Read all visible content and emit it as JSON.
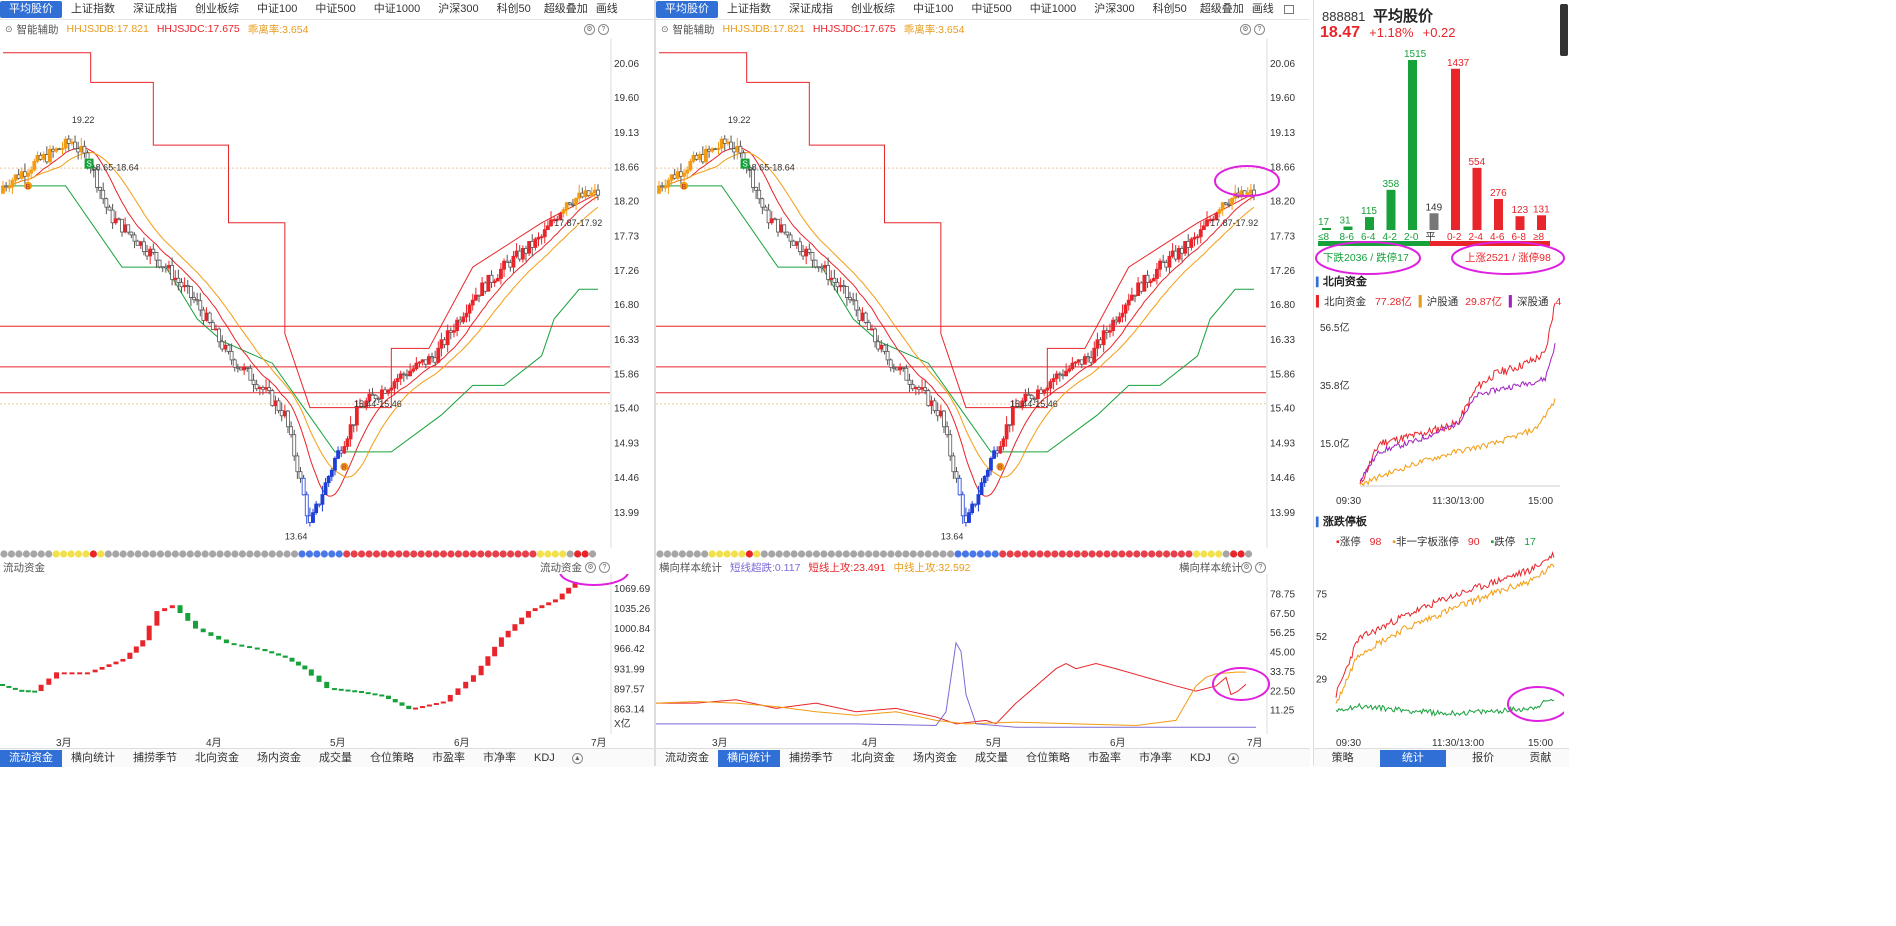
{
  "tabs": [
    "平均股价",
    "上证指数",
    "深证成指",
    "创业板综",
    "中证100",
    "中证500",
    "中证1000",
    "沪深300",
    "科创50",
    "超级叠加",
    "画线"
  ],
  "active_tab": "平均股价",
  "indicator_bar": {
    "label": "智能辅助",
    "v1": "HHJSJDB:17.821",
    "v2": "HHJSJDC:17.675",
    "v3": "乖离率:3.654"
  },
  "price_axis": [
    "20.06",
    "19.60",
    "19.13",
    "18.66",
    "18.20",
    "17.73",
    "17.26",
    "16.80",
    "16.33",
    "15.86",
    "15.40",
    "14.93",
    "14.46",
    "13.99"
  ],
  "annotations": {
    "high": "19.22",
    "zone1": "18.65-18.64",
    "zone2": "15.44-15.46",
    "zone3": "17.87-17.92",
    "low": "13.64",
    "buy": "B"
  },
  "x_axis": [
    "3月",
    "4月",
    "5月",
    "6月",
    "7月"
  ],
  "left_sub": {
    "title": "流动资金",
    "right_title": "流动资金",
    "axis": [
      "1069.69",
      "1035.26",
      "1000.84",
      "966.42",
      "931.99",
      "897.57",
      "863.14"
    ],
    "unit": "X亿"
  },
  "right_sub": {
    "title": "横向样本统计",
    "v1": "短线超跌:0.117",
    "v2": "短线上攻:23.491",
    "v3": "中线上攻:32.592",
    "right_title": "横向样本统计",
    "axis": [
      "78.75",
      "67.50",
      "56.25",
      "45.00",
      "33.75",
      "22.50",
      "11.25"
    ]
  },
  "bottom_tabs": [
    "流动资金",
    "横向统计",
    "捕捞季节",
    "北向资金",
    "场内资金",
    "成交量",
    "仓位策略",
    "市盈率",
    "市净率",
    "KDJ"
  ],
  "left_bottom_active": "流动资金",
  "right_bottom_active": "横向统计",
  "side": {
    "code": "888881",
    "name": "平均股价",
    "price": "18.47",
    "pct": "+1.18%",
    "chg": "+0.22",
    "dist": {
      "labels": [
        "≤8",
        "8-6",
        "6-4",
        "4-2",
        "2-0",
        "平",
        "0-2",
        "2-4",
        "4-6",
        "6-8",
        "≥8"
      ],
      "values": [
        17,
        31,
        115,
        358,
        1515,
        149,
        1437,
        554,
        276,
        123,
        131
      ],
      "value_labels": [
        "17",
        "31",
        "115",
        "358",
        "1515",
        "149",
        "1437",
        "554",
        "276",
        "123",
        "131"
      ]
    },
    "down_text": "下跌2036 / 跌停17",
    "up_text": "上涨2521 / 涨停98",
    "north": {
      "title": "北向资金",
      "l1": "北向资金",
      "v1": "77.28亿",
      "l2": "沪股通",
      "v2": "29.87亿",
      "l3": "深股通",
      "v3": "4",
      "axis": [
        "56.5亿",
        "35.8亿",
        "15.0亿"
      ],
      "x": [
        "09:30",
        "11:30/13:00",
        "15:00"
      ]
    },
    "limit": {
      "title": "涨跌停板",
      "l1": "涨停",
      "v1": "98",
      "l2": "非一字板涨停",
      "v2": "90",
      "l3": "跌停",
      "v3": "17",
      "axis": [
        "75",
        "52",
        "29"
      ],
      "x": [
        "09:30",
        "11:30/13:00",
        "15:00"
      ]
    },
    "tabs": [
      "策略",
      "统计",
      "报价",
      "贡献"
    ],
    "active_tab": "统计"
  },
  "colors": {
    "up": "#e8252a",
    "down": "#17a13b",
    "accent": "#2f6fd6",
    "orange": "#f39c12",
    "highlight": "#e020e0",
    "blue": "#1f3fd6"
  }
}
